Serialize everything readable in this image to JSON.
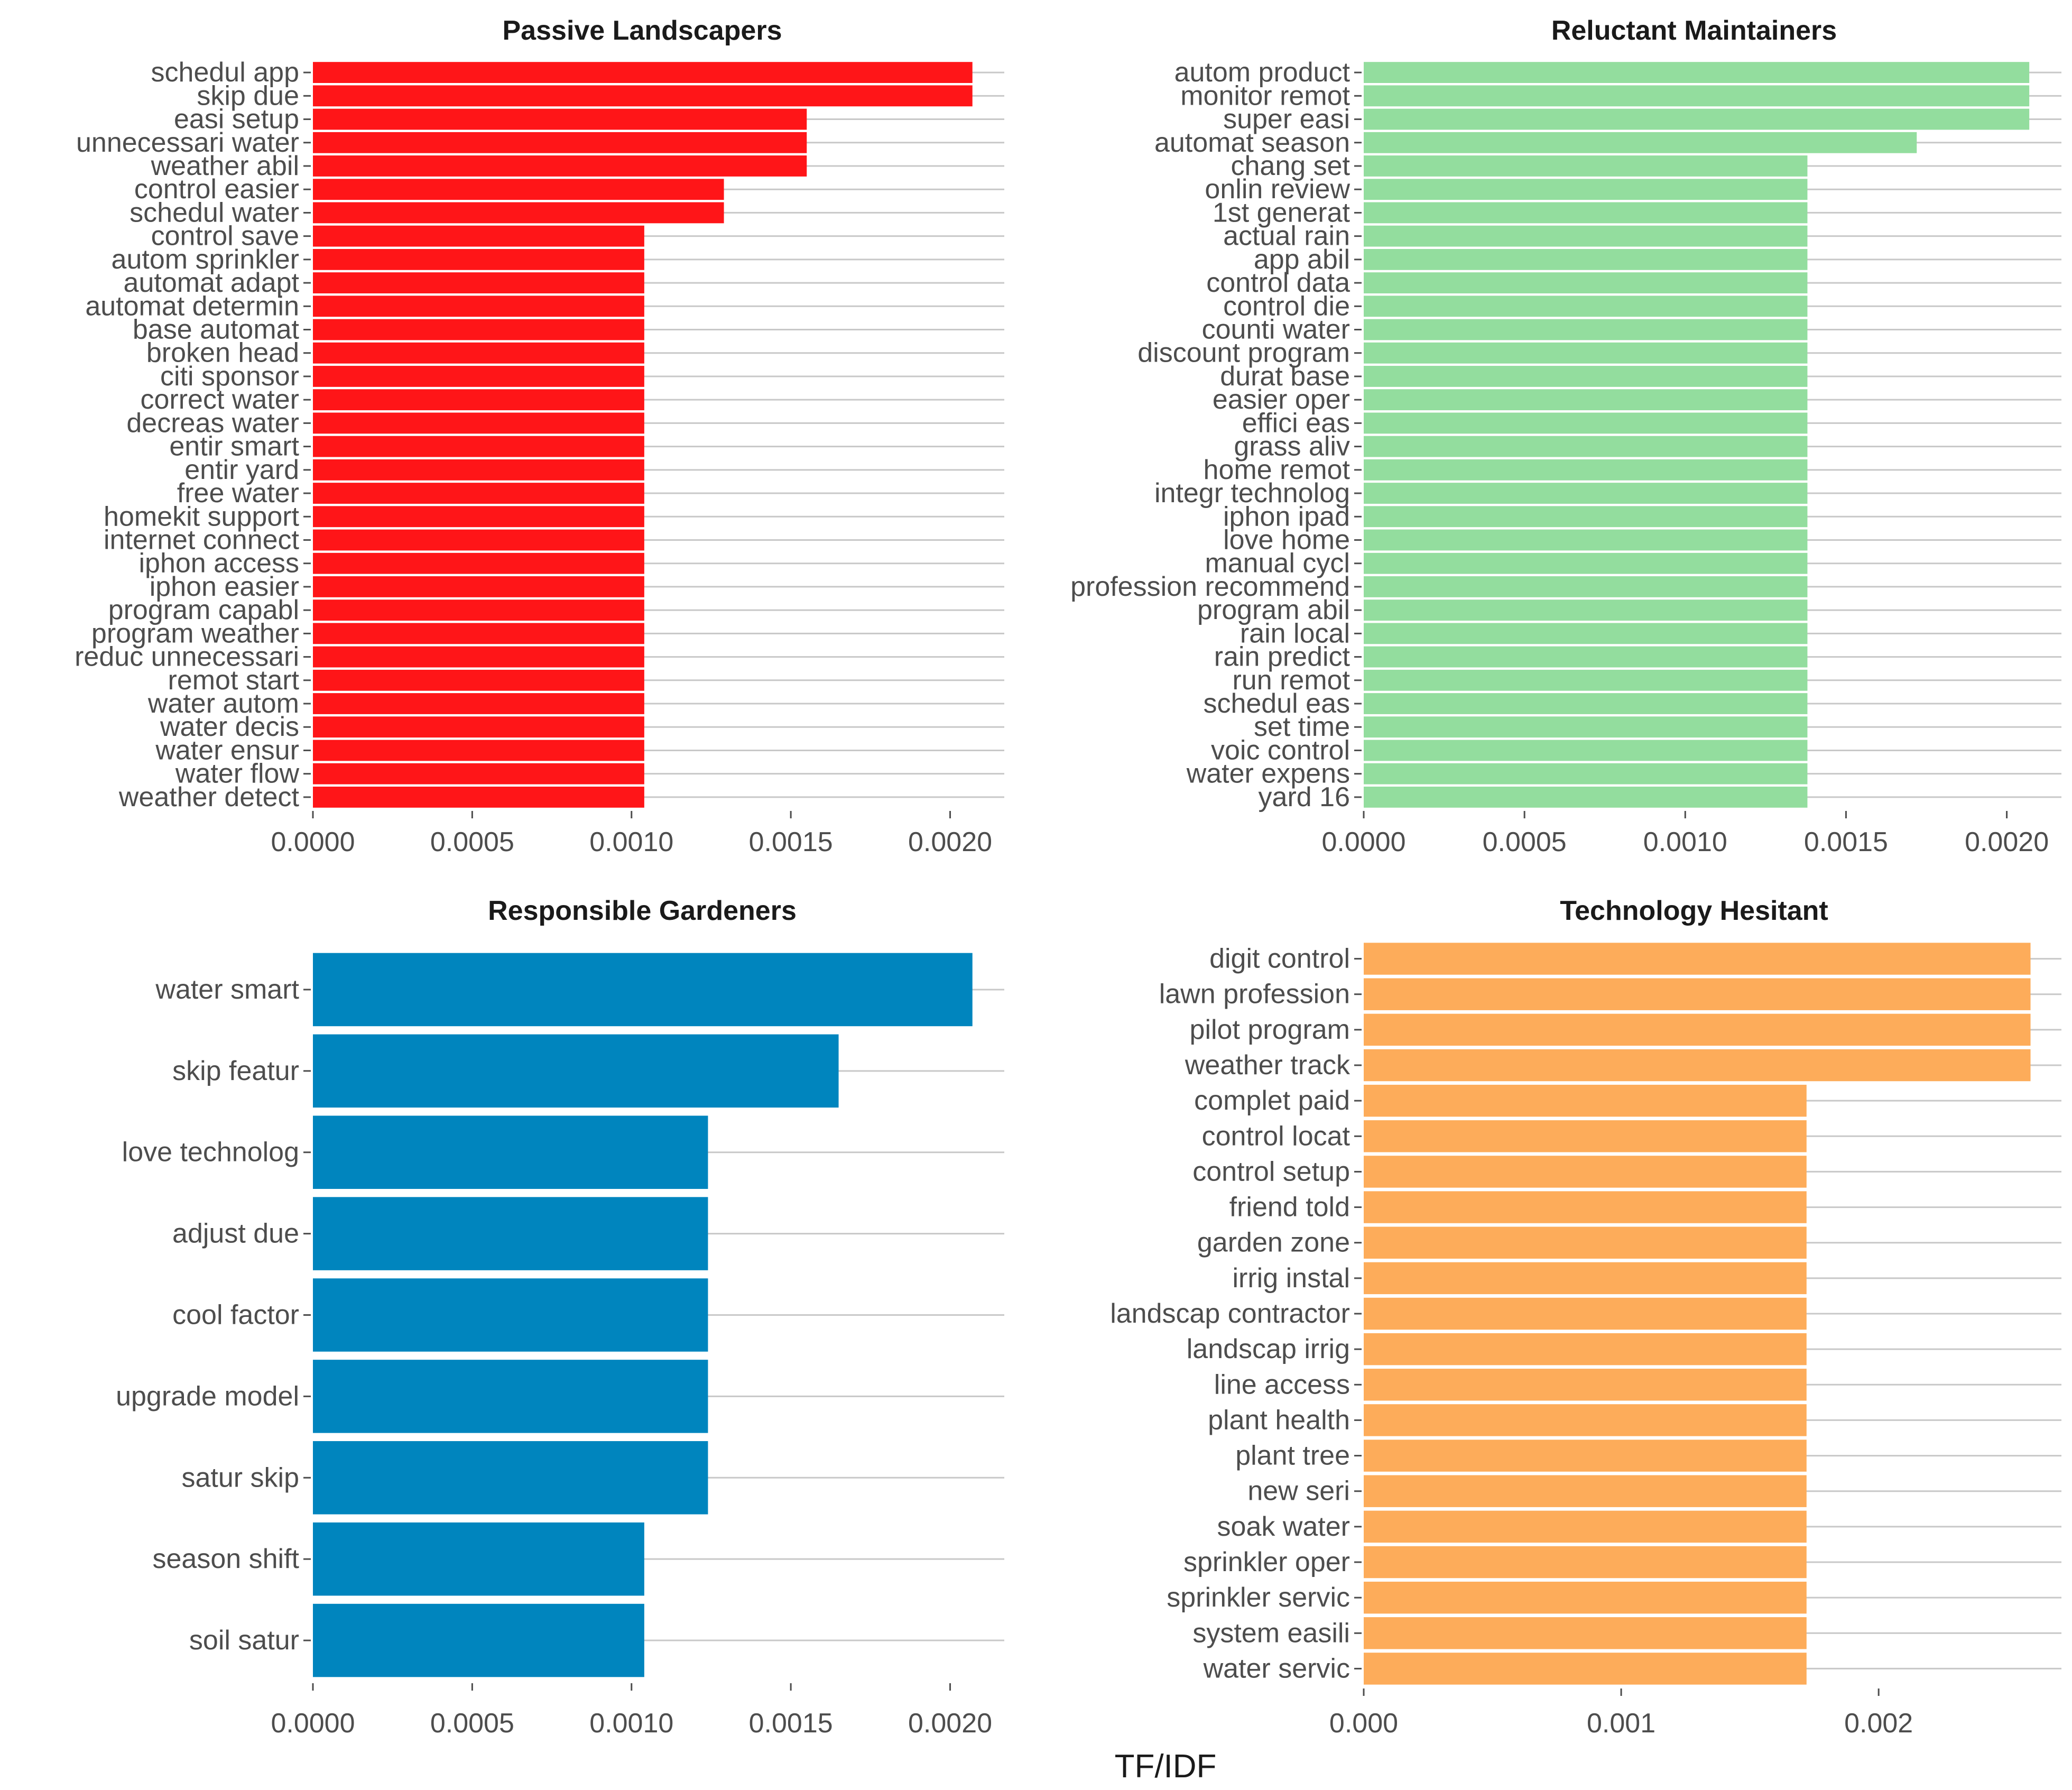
{
  "x_axis_title": "TF/IDF",
  "chart_data": [
    {
      "type": "bar",
      "orientation": "horizontal",
      "title": "Passive Landscapers",
      "color": "#FF1518",
      "xlim": [
        0,
        0.00217
      ],
      "x_ticks": [
        "0.0000",
        "0.0005",
        "0.0010",
        "0.0015",
        "0.0020"
      ],
      "x_tick_values": [
        0,
        0.0005,
        0.001,
        0.0015,
        0.002
      ],
      "categories": [
        "schedul app",
        "skip due",
        "easi setup",
        "unnecessari water",
        "weather abil",
        "control easier",
        "schedul water",
        "control save",
        "autom sprinkler",
        "automat adapt",
        "automat determin",
        "base automat",
        "broken head",
        "citi sponsor",
        "correct water",
        "decreas water",
        "entir smart",
        "entir yard",
        "free water",
        "homekit support",
        "internet connect",
        "iphon access",
        "iphon easier",
        "program capabl",
        "program weather",
        "reduc unnecessari",
        "remot start",
        "water autom",
        "water decis",
        "water ensur",
        "water flow",
        "weather detect"
      ],
      "values": [
        0.00207,
        0.00207,
        0.00155,
        0.00155,
        0.00155,
        0.00129,
        0.00129,
        0.00104,
        0.00104,
        0.00104,
        0.00104,
        0.00104,
        0.00104,
        0.00104,
        0.00104,
        0.00104,
        0.00104,
        0.00104,
        0.00104,
        0.00104,
        0.00104,
        0.00104,
        0.00104,
        0.00104,
        0.00104,
        0.00104,
        0.00104,
        0.00104,
        0.00104,
        0.00104,
        0.00104,
        0.00104
      ]
    },
    {
      "type": "bar",
      "orientation": "horizontal",
      "title": "Reluctant Maintainers",
      "color": "#93DD9E",
      "xlim": [
        0,
        0.00217
      ],
      "x_ticks": [
        "0.0000",
        "0.0005",
        "0.0010",
        "0.0015",
        "0.0020"
      ],
      "x_tick_values": [
        0,
        0.0005,
        0.001,
        0.0015,
        0.002
      ],
      "categories": [
        "autom product",
        "monitor remot",
        "super easi",
        "automat season",
        "chang set",
        "onlin review",
        "1st generat",
        "actual rain",
        "app abil",
        "control data",
        "control die",
        "counti water",
        "discount program",
        "durat base",
        "easier oper",
        "effici eas",
        "grass aliv",
        "home remot",
        "integr technolog",
        "iphon ipad",
        "love home",
        "manual cycl",
        "profession recommend",
        "program abil",
        "rain local",
        "rain predict",
        "run remot",
        "schedul eas",
        "set time",
        "voic control",
        "water expens",
        "yard 16"
      ],
      "values": [
        0.00207,
        0.00207,
        0.00207,
        0.00172,
        0.00138,
        0.00138,
        0.00138,
        0.00138,
        0.00138,
        0.00138,
        0.00138,
        0.00138,
        0.00138,
        0.00138,
        0.00138,
        0.00138,
        0.00138,
        0.00138,
        0.00138,
        0.00138,
        0.00138,
        0.00138,
        0.00138,
        0.00138,
        0.00138,
        0.00138,
        0.00138,
        0.00138,
        0.00138,
        0.00138,
        0.00138,
        0.00138
      ]
    },
    {
      "type": "bar",
      "orientation": "horizontal",
      "title": "Responsible Gardeners",
      "color": "#0085BE",
      "xlim": [
        0,
        0.00217
      ],
      "x_ticks": [
        "0.0000",
        "0.0005",
        "0.0010",
        "0.0015",
        "0.0020"
      ],
      "x_tick_values": [
        0,
        0.0005,
        0.001,
        0.0015,
        0.002
      ],
      "categories": [
        "water smart",
        "skip featur",
        "love technolog",
        "adjust due",
        "cool factor",
        "upgrade model",
        "satur skip",
        "season shift",
        "soil satur"
      ],
      "values": [
        0.00207,
        0.00165,
        0.00124,
        0.00124,
        0.00124,
        0.00124,
        0.00124,
        0.00104,
        0.00104
      ]
    },
    {
      "type": "bar",
      "orientation": "horizontal",
      "title": "Technology Hesitant",
      "color": "#FDAC5A",
      "xlim": [
        0,
        0.00271
      ],
      "x_ticks": [
        "0.000",
        "0.001",
        "0.002"
      ],
      "x_tick_values": [
        0,
        0.001,
        0.002
      ],
      "categories": [
        "digit control",
        "lawn profession",
        "pilot program",
        "weather track",
        "complet paid",
        "control locat",
        "control setup",
        "friend told",
        "garden zone",
        "irrig instal",
        "landscap contractor",
        "landscap irrig",
        "line access",
        "plant health",
        "plant tree",
        "new seri",
        "soak water",
        "sprinkler oper",
        "sprinkler servic",
        "system easili",
        "water servic"
      ],
      "values": [
        0.00259,
        0.00259,
        0.00259,
        0.00259,
        0.00172,
        0.00172,
        0.00172,
        0.00172,
        0.00172,
        0.00172,
        0.00172,
        0.00172,
        0.00172,
        0.00172,
        0.00172,
        0.00172,
        0.00172,
        0.00172,
        0.00172,
        0.00172,
        0.00172
      ]
    }
  ]
}
